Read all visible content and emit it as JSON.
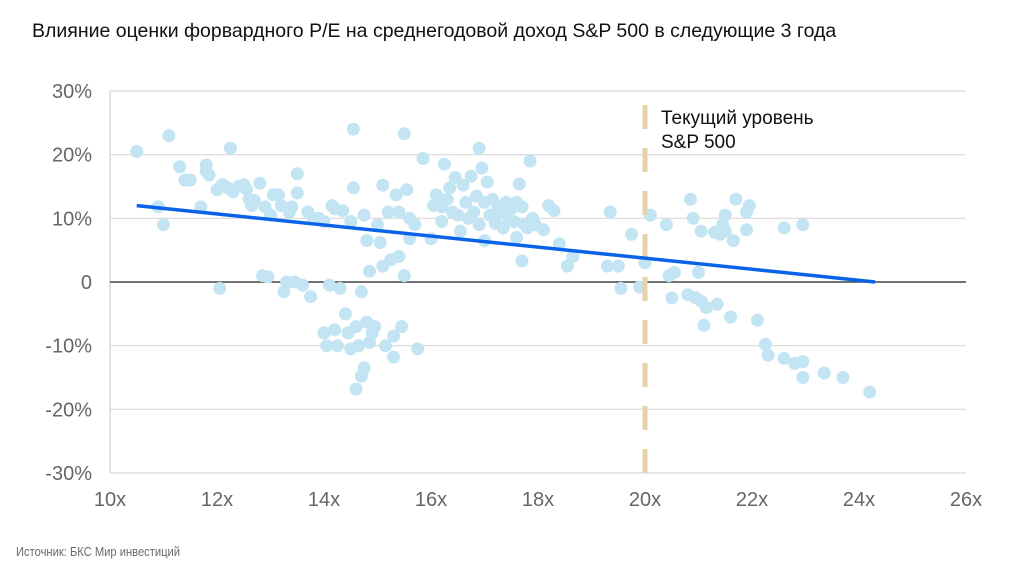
{
  "chart_data": {
    "type": "scatter",
    "title": "Влияние оценки форвардного P/E на среднегодовой доход S&P 500 в следующие 3 года",
    "xlabel": "",
    "ylabel": "",
    "xlim": [
      10,
      26
    ],
    "ylim": [
      -30,
      30
    ],
    "x_ticks": [
      {
        "value": 10,
        "label": "10x"
      },
      {
        "value": 12,
        "label": "12x"
      },
      {
        "value": 14,
        "label": "14x"
      },
      {
        "value": 16,
        "label": "16x"
      },
      {
        "value": 18,
        "label": "18x"
      },
      {
        "value": 20,
        "label": "20x"
      },
      {
        "value": 22,
        "label": "22x"
      },
      {
        "value": 24,
        "label": "24x"
      },
      {
        "value": 26,
        "label": "26x"
      }
    ],
    "y_ticks": [
      {
        "value": 30,
        "label": "30%"
      },
      {
        "value": 20,
        "label": "20%"
      },
      {
        "value": 10,
        "label": "10%"
      },
      {
        "value": 0,
        "label": "0"
      },
      {
        "value": -10,
        "label": "-10%"
      },
      {
        "value": -20,
        "label": "-20%"
      },
      {
        "value": -30,
        "label": "-30%"
      }
    ],
    "grid": true,
    "colors": {
      "points": "#c3e4f2",
      "trend": "#0a62e8",
      "current_level": "#e6d3a8",
      "zero_line": "#444444",
      "grid": "#d9d9d9"
    },
    "series": [
      {
        "name": "observations",
        "points": [
          [
            10.5,
            20.5
          ],
          [
            10.9,
            11.8
          ],
          [
            11.0,
            9.0
          ],
          [
            11.1,
            23.0
          ],
          [
            11.3,
            18.1
          ],
          [
            11.4,
            16.0
          ],
          [
            11.5,
            16.0
          ],
          [
            11.7,
            11.8
          ],
          [
            11.8,
            18.4
          ],
          [
            11.8,
            17.4
          ],
          [
            11.85,
            16.8
          ],
          [
            12.0,
            14.5
          ],
          [
            12.05,
            -1.0
          ],
          [
            12.1,
            15.3
          ],
          [
            12.2,
            14.8
          ],
          [
            12.25,
            21.0
          ],
          [
            12.3,
            14.2
          ],
          [
            12.4,
            15.0
          ],
          [
            12.5,
            15.3
          ],
          [
            12.55,
            14.6
          ],
          [
            12.6,
            13.0
          ],
          [
            12.65,
            12.0
          ],
          [
            12.7,
            12.8
          ],
          [
            12.8,
            15.5
          ],
          [
            12.85,
            1.0
          ],
          [
            12.9,
            11.8
          ],
          [
            12.95,
            0.8
          ],
          [
            13.0,
            10.5
          ],
          [
            13.05,
            13.7
          ],
          [
            13.15,
            13.7
          ],
          [
            13.2,
            12.0
          ],
          [
            13.25,
            -1.5
          ],
          [
            13.3,
            0.0
          ],
          [
            13.35,
            11.0
          ],
          [
            13.4,
            11.8
          ],
          [
            13.45,
            0.0
          ],
          [
            13.5,
            17.0
          ],
          [
            13.5,
            14.0
          ],
          [
            13.6,
            -0.5
          ],
          [
            13.7,
            11.0
          ],
          [
            13.75,
            -2.3
          ],
          [
            13.8,
            10.0
          ],
          [
            13.9,
            10.0
          ],
          [
            14.0,
            9.5
          ],
          [
            14.0,
            -8.0
          ],
          [
            14.05,
            -10.0
          ],
          [
            14.1,
            -0.5
          ],
          [
            14.15,
            12.0
          ],
          [
            14.2,
            11.5
          ],
          [
            14.2,
            -7.5
          ],
          [
            14.25,
            -10.0
          ],
          [
            14.3,
            -1.0
          ],
          [
            14.35,
            11.2
          ],
          [
            14.4,
            -5.0
          ],
          [
            14.45,
            -8.0
          ],
          [
            14.5,
            9.5
          ],
          [
            14.5,
            -10.5
          ],
          [
            14.55,
            24.0
          ],
          [
            14.55,
            14.8
          ],
          [
            14.6,
            -7.0
          ],
          [
            14.6,
            -16.8
          ],
          [
            14.65,
            -10.0
          ],
          [
            14.7,
            -1.5
          ],
          [
            14.7,
            -14.8
          ],
          [
            14.75,
            10.5
          ],
          [
            14.75,
            -13.5
          ],
          [
            14.8,
            6.5
          ],
          [
            14.8,
            -6.3
          ],
          [
            14.85,
            1.7
          ],
          [
            14.85,
            -9.5
          ],
          [
            14.9,
            -8.0
          ],
          [
            14.95,
            -7.0
          ],
          [
            15.0,
            9.0
          ],
          [
            15.05,
            6.2
          ],
          [
            15.1,
            15.2
          ],
          [
            15.1,
            2.5
          ],
          [
            15.15,
            -10.0
          ],
          [
            15.2,
            11.0
          ],
          [
            15.25,
            3.5
          ],
          [
            15.3,
            -8.5
          ],
          [
            15.3,
            -11.8
          ],
          [
            15.35,
            13.7
          ],
          [
            15.4,
            11.0
          ],
          [
            15.4,
            4.0
          ],
          [
            15.45,
            -7.0
          ],
          [
            15.5,
            23.3
          ],
          [
            15.5,
            1.0
          ],
          [
            15.55,
            14.5
          ],
          [
            15.6,
            10.0
          ],
          [
            15.6,
            6.8
          ],
          [
            15.7,
            9.0
          ],
          [
            15.75,
            -10.5
          ],
          [
            15.85,
            19.4
          ],
          [
            16.0,
            6.8
          ],
          [
            16.05,
            12.0
          ],
          [
            16.1,
            13.7
          ],
          [
            16.2,
            11.8
          ],
          [
            16.2,
            9.5
          ],
          [
            16.25,
            18.5
          ],
          [
            16.3,
            13.0
          ],
          [
            16.35,
            14.8
          ],
          [
            16.4,
            11.0
          ],
          [
            16.45,
            16.4
          ],
          [
            16.5,
            10.5
          ],
          [
            16.55,
            8.0
          ],
          [
            16.6,
            15.2
          ],
          [
            16.65,
            12.5
          ],
          [
            16.7,
            10.0
          ],
          [
            16.75,
            16.6
          ],
          [
            16.8,
            11.0
          ],
          [
            16.85,
            13.5
          ],
          [
            16.9,
            21.0
          ],
          [
            16.9,
            9.0
          ],
          [
            16.95,
            17.9
          ],
          [
            17.0,
            12.5
          ],
          [
            17.0,
            6.5
          ],
          [
            17.05,
            15.7
          ],
          [
            17.1,
            10.5
          ],
          [
            17.15,
            13.0
          ],
          [
            17.2,
            9.2
          ],
          [
            17.25,
            11.7
          ],
          [
            17.3,
            10.8
          ],
          [
            17.35,
            8.5
          ],
          [
            17.4,
            12.5
          ],
          [
            17.45,
            10.0
          ],
          [
            17.5,
            11.5
          ],
          [
            17.55,
            9.5
          ],
          [
            17.6,
            12.5
          ],
          [
            17.6,
            7.0
          ],
          [
            17.65,
            15.4
          ],
          [
            17.7,
            11.8
          ],
          [
            17.7,
            3.3
          ],
          [
            17.75,
            9.0
          ],
          [
            17.8,
            8.5
          ],
          [
            17.85,
            19.0
          ],
          [
            17.9,
            10.0
          ],
          [
            17.95,
            9.0
          ],
          [
            18.1,
            8.2
          ],
          [
            18.2,
            12.0
          ],
          [
            18.3,
            11.2
          ],
          [
            18.4,
            6.0
          ],
          [
            18.55,
            2.5
          ],
          [
            18.65,
            4.0
          ],
          [
            19.3,
            2.5
          ],
          [
            19.35,
            11.0
          ],
          [
            19.5,
            2.5
          ],
          [
            19.55,
            -1.0
          ],
          [
            19.75,
            7.5
          ],
          [
            19.9,
            -0.8
          ],
          [
            20.0,
            3.0
          ],
          [
            20.1,
            10.5
          ],
          [
            20.4,
            9.0
          ],
          [
            20.45,
            1.0
          ],
          [
            20.5,
            -2.5
          ],
          [
            20.55,
            1.5
          ],
          [
            20.8,
            -2.0
          ],
          [
            20.85,
            13.0
          ],
          [
            20.9,
            10.0
          ],
          [
            20.95,
            -2.5
          ],
          [
            21.0,
            1.5
          ],
          [
            21.05,
            8.0
          ],
          [
            21.05,
            -3.0
          ],
          [
            21.1,
            -6.8
          ],
          [
            21.15,
            -4.0
          ],
          [
            21.3,
            7.8
          ],
          [
            21.35,
            -3.5
          ],
          [
            21.4,
            7.5
          ],
          [
            21.45,
            9.0
          ],
          [
            21.5,
            8.0
          ],
          [
            21.5,
            10.5
          ],
          [
            21.6,
            -5.5
          ],
          [
            21.65,
            6.5
          ],
          [
            21.7,
            13.0
          ],
          [
            21.9,
            8.2
          ],
          [
            21.9,
            11.0
          ],
          [
            21.95,
            12.0
          ],
          [
            22.1,
            -6.0
          ],
          [
            22.25,
            -9.8
          ],
          [
            22.3,
            -11.5
          ],
          [
            22.6,
            8.5
          ],
          [
            22.6,
            -12.0
          ],
          [
            22.8,
            -12.8
          ],
          [
            22.95,
            9.0
          ],
          [
            22.95,
            -12.5
          ],
          [
            22.95,
            -15.0
          ],
          [
            23.35,
            -14.3
          ],
          [
            23.7,
            -15.0
          ],
          [
            24.2,
            -17.3
          ]
        ]
      }
    ],
    "trendline": {
      "name": "linear-trend",
      "from": [
        10.5,
        12.0
      ],
      "to": [
        24.3,
        0.0
      ]
    },
    "reference_line": {
      "x": 20.0,
      "style": "dashed",
      "label_line1": "Текущий уровень",
      "label_line2": "S&P 500"
    },
    "source": "Источник: БКС Мир инвестиций"
  }
}
